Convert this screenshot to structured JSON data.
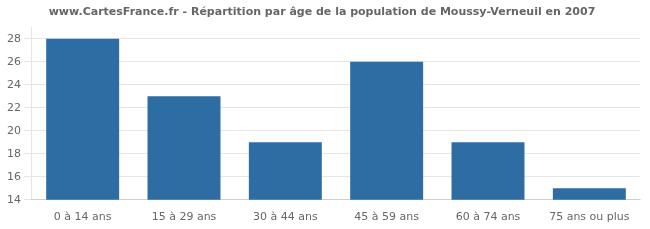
{
  "chart_data": {
    "type": "bar",
    "title": "www.CartesFrance.fr - Répartition par âge de la population de Moussy-Verneuil en 2007",
    "categories": [
      "0 à 14 ans",
      "15 à 29 ans",
      "30 à 44 ans",
      "45 à 59 ans",
      "60 à 74 ans",
      "75 ans ou plus"
    ],
    "values": [
      28,
      23,
      19,
      26,
      19,
      15
    ],
    "color": "#2e6da4",
    "ylim": [
      14,
      29
    ],
    "yticks": [
      14,
      16,
      18,
      20,
      22,
      24,
      26,
      28
    ],
    "grid": true
  }
}
